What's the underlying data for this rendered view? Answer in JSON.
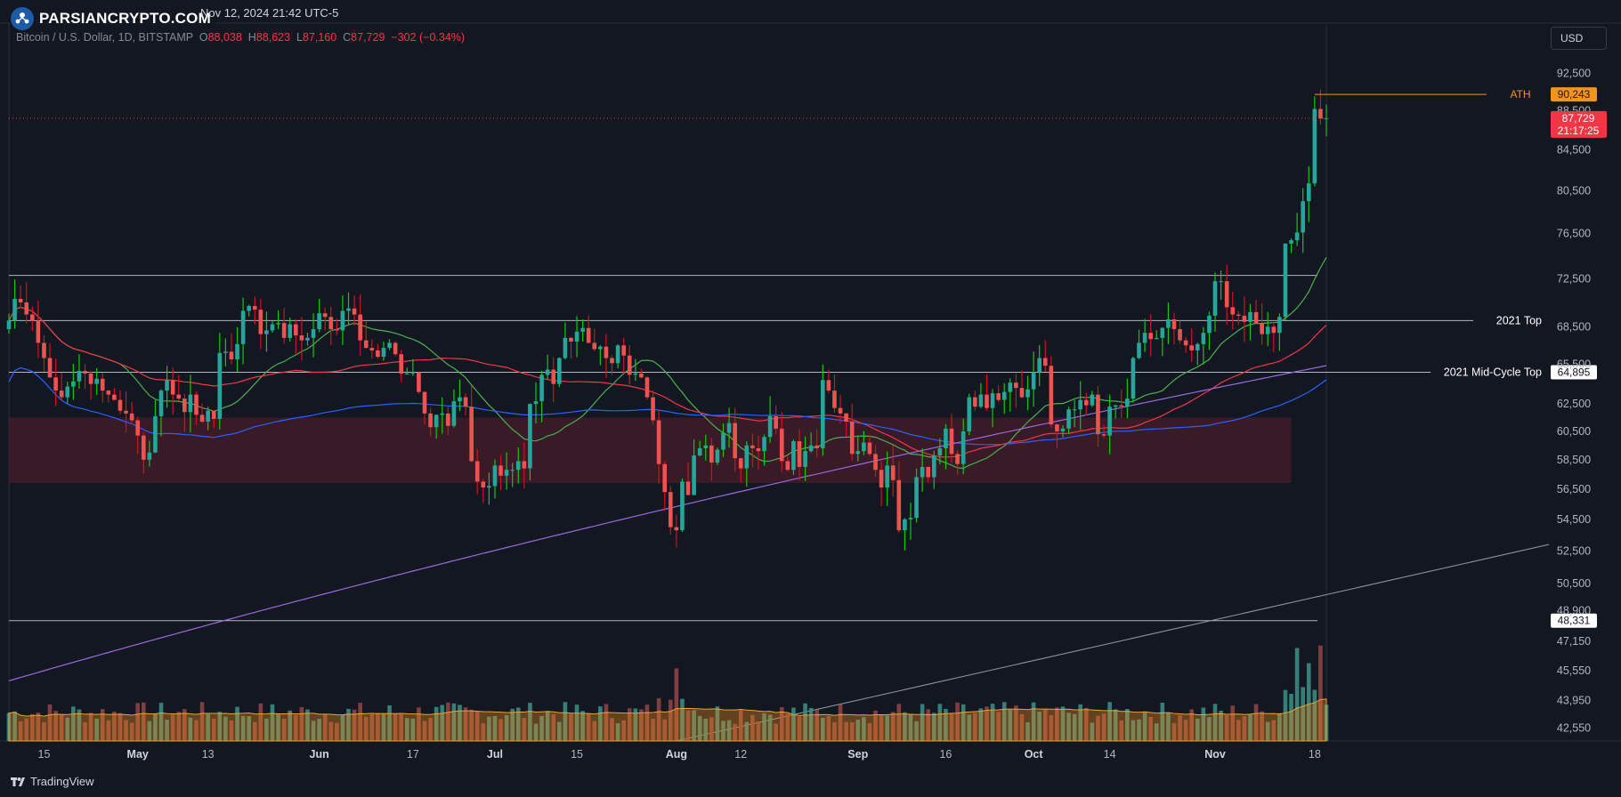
{
  "header": {
    "brand": "PARSIANCRYPTO.COM",
    "datetime": "Nov 12, 2024 21:42 UTC-5",
    "symbol": "Bitcoin / U.S. Dollar, 1D, BITSTAMP",
    "o_label": "O",
    "o_value": "88,038",
    "h_label": "H",
    "h_value": "88,623",
    "l_label": "L",
    "l_value": "87,160",
    "c_label": "C",
    "c_value": "87,729",
    "change": "−302 (−0.34%)"
  },
  "currency_button": "USD",
  "footer": {
    "brand": "TradingView"
  },
  "colors": {
    "up": "#26a69a",
    "down": "#ef5350",
    "bg": "#131722",
    "grid": "#2a2e39",
    "ath": "#f7931a",
    "price": "#f23645",
    "volume_up": "#3b8b80",
    "volume_down": "#8e4245",
    "wick_up": "#16c60c",
    "wick_down": "#d1131c"
  },
  "chart_data": {
    "type": "candlestick",
    "symbol": "BTCUSD",
    "timeframe": "1D",
    "y_scale": "log",
    "ylim": [
      41900,
      98000
    ],
    "y_ticks": [
      92500,
      88500,
      84500,
      80500,
      76500,
      72500,
      68500,
      65500,
      62500,
      60500,
      58500,
      56500,
      54500,
      52500,
      50500,
      48900,
      47150,
      45550,
      43950,
      42550
    ],
    "y_tick_labels": [
      "92,500",
      "88,500",
      "84,500",
      "80,500",
      "76,500",
      "72,500",
      "68,500",
      "65,500",
      "62,500",
      "60,500",
      "58,500",
      "56,500",
      "54,500",
      "52,500",
      "50,500",
      "48,900",
      "47,150",
      "45,550",
      "43,950",
      "42,550"
    ],
    "x_range": [
      "2024-04-09",
      "2024-11-20"
    ],
    "x_ticks": [
      {
        "date": "2024-04-15",
        "label": "15"
      },
      {
        "date": "2024-05-01",
        "label": "May"
      },
      {
        "date": "2024-05-13",
        "label": "13"
      },
      {
        "date": "2024-06-01",
        "label": "Jun"
      },
      {
        "date": "2024-06-17",
        "label": "17"
      },
      {
        "date": "2024-07-01",
        "label": "Jul"
      },
      {
        "date": "2024-07-15",
        "label": "15"
      },
      {
        "date": "2024-08-01",
        "label": "Aug"
      },
      {
        "date": "2024-08-12",
        "label": "12"
      },
      {
        "date": "2024-09-01",
        "label": "Sep"
      },
      {
        "date": "2024-09-16",
        "label": "16"
      },
      {
        "date": "2024-10-01",
        "label": "Oct"
      },
      {
        "date": "2024-10-14",
        "label": "14"
      },
      {
        "date": "2024-11-01",
        "label": "Nov"
      },
      {
        "date": "2024-11-18",
        "label": "18"
      }
    ],
    "closes": [
      69000,
      70800,
      70500,
      69500,
      69000,
      67200,
      66000,
      64500,
      63500,
      63000,
      63800,
      64200,
      65000,
      64800,
      64000,
      64400,
      63500,
      63200,
      62800,
      62000,
      61800,
      61300,
      60200,
      58500,
      59000,
      61600,
      63500,
      64300,
      63200,
      62900,
      61900,
      63200,
      61700,
      61200,
      62000,
      61400,
      66400,
      66500,
      65900,
      67100,
      69800,
      70200,
      69900,
      67900,
      68200,
      68700,
      68800,
      67600,
      68700,
      67800,
      67400,
      67600,
      68300,
      69600,
      69300,
      68300,
      68200,
      69800,
      70000,
      69500,
      67400,
      66800,
      66600,
      66100,
      66800,
      67200,
      66300,
      64800,
      64800,
      64900,
      63400,
      61800,
      60800,
      61700,
      61800,
      60900,
      62700,
      63000,
      62300,
      58400,
      57000,
      56600,
      56700,
      58100,
      57400,
      57800,
      57800,
      58400,
      57900,
      62500,
      62700,
      64700,
      65100,
      64000,
      66000,
      67600,
      67300,
      68100,
      68400,
      67200,
      66700,
      66900,
      66000,
      65600,
      67000,
      66200,
      64700,
      64800,
      64500,
      63000,
      61300,
      58200,
      56300,
      54000,
      53800,
      57000,
      56100,
      58800,
      59300,
      59500,
      58300,
      59200,
      60400,
      61100,
      58600,
      57900,
      59500,
      59300,
      59100,
      60100,
      61600,
      60700,
      58400,
      57800,
      59800,
      58000,
      59100,
      59500,
      59300,
      64300,
      63500,
      62200,
      61800,
      61200,
      58900,
      59100,
      59700,
      58900,
      57800,
      56600,
      58100,
      57100,
      53800,
      54500,
      54600,
      57300,
      58000,
      57300,
      58800,
      59300,
      60700,
      58900,
      58200,
      60500,
      63000,
      62300,
      63200,
      62200,
      63300,
      62800,
      63400,
      64100,
      63700,
      63000,
      63600,
      64900,
      66000,
      65400,
      61000,
      60500,
      60700,
      62100,
      62100,
      62800,
      62400,
      63200,
      60300,
      60200,
      62300,
      62400,
      62300,
      62900,
      66000,
      67200,
      68000,
      67500,
      67600,
      68400,
      69100,
      68300,
      67400,
      67000,
      66600,
      67100,
      68000,
      69400,
      72300,
      72300,
      70100,
      69500,
      69400,
      68900,
      69700,
      68800,
      67900,
      68500,
      68000,
      69300,
      75600,
      75900,
      76600,
      79500,
      81200,
      88700,
      87700,
      87729
    ],
    "ath_price": 90243,
    "ath_label": "ATH",
    "current_price": 87729,
    "countdown": "21:17:25",
    "levels": [
      {
        "price": 72800,
        "label": ""
      },
      {
        "price": 69000,
        "label": "2021 Top"
      },
      {
        "price": 64895,
        "label": "2021 Mid-Cycle Top",
        "price_label": "64,895"
      },
      {
        "price": 48331,
        "price_label": "48,331"
      }
    ],
    "support_box": {
      "from": 56900,
      "to": 61500,
      "start": "2024-04-09",
      "end": "2024-11-14"
    },
    "ath_tag": "90,243",
    "price_tag": "87,729"
  }
}
